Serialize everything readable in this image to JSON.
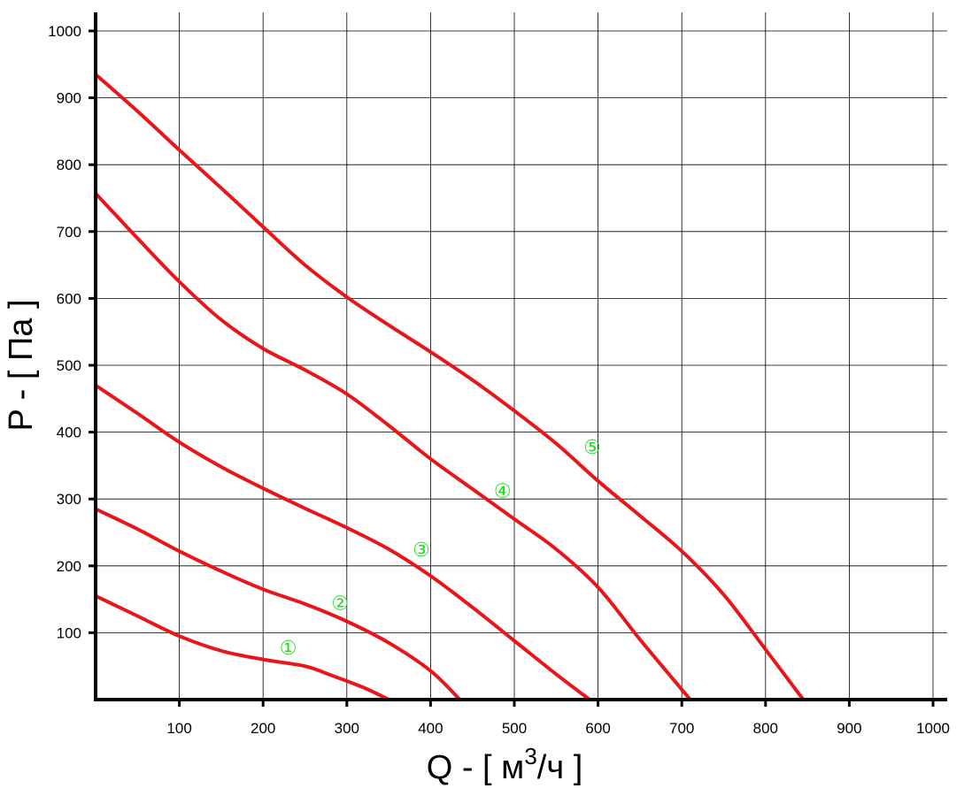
{
  "chart_data": {
    "type": "line",
    "xlabel": "Q - [ м³/ч ]",
    "xlabel_parts": {
      "prefix": "Q - [ м",
      "sup": "3",
      "suffix": "/ч ]"
    },
    "ylabel": "P - [ Па ]",
    "xlim": [
      0,
      1000
    ],
    "ylim": [
      0,
      1000
    ],
    "x_ticks": [
      100,
      200,
      300,
      400,
      500,
      600,
      700,
      800,
      900,
      1000
    ],
    "y_ticks": [
      100,
      200,
      300,
      400,
      500,
      600,
      700,
      800,
      900,
      1000
    ],
    "grid": true,
    "series_color": "#e8161b",
    "grid_color": "#000000",
    "label_color": "#22dd22",
    "series": [
      {
        "label": "①",
        "label_pos": [
          230,
          78
        ],
        "points": [
          [
            0,
            155
          ],
          [
            50,
            125
          ],
          [
            100,
            95
          ],
          [
            150,
            73
          ],
          [
            200,
            60
          ],
          [
            250,
            50
          ],
          [
            280,
            37
          ],
          [
            320,
            18
          ],
          [
            350,
            0
          ]
        ]
      },
      {
        "label": "②",
        "label_pos": [
          292,
          145
        ],
        "points": [
          [
            0,
            285
          ],
          [
            50,
            255
          ],
          [
            100,
            222
          ],
          [
            150,
            192
          ],
          [
            200,
            165
          ],
          [
            250,
            143
          ],
          [
            300,
            117
          ],
          [
            350,
            85
          ],
          [
            400,
            43
          ],
          [
            435,
            0
          ]
        ]
      },
      {
        "label": "③",
        "label_pos": [
          389,
          225
        ],
        "points": [
          [
            0,
            470
          ],
          [
            50,
            428
          ],
          [
            100,
            385
          ],
          [
            150,
            348
          ],
          [
            200,
            316
          ],
          [
            250,
            286
          ],
          [
            300,
            257
          ],
          [
            350,
            225
          ],
          [
            400,
            185
          ],
          [
            450,
            138
          ],
          [
            500,
            88
          ],
          [
            550,
            38
          ],
          [
            590,
            0
          ]
        ]
      },
      {
        "label": "④",
        "label_pos": [
          486,
          313
        ],
        "points": [
          [
            0,
            757
          ],
          [
            50,
            690
          ],
          [
            100,
            625
          ],
          [
            150,
            568
          ],
          [
            200,
            525
          ],
          [
            250,
            493
          ],
          [
            300,
            457
          ],
          [
            350,
            410
          ],
          [
            400,
            360
          ],
          [
            450,
            315
          ],
          [
            500,
            270
          ],
          [
            550,
            225
          ],
          [
            600,
            168
          ],
          [
            650,
            90
          ],
          [
            690,
            30
          ],
          [
            710,
            0
          ]
        ]
      },
      {
        "label": "⑤",
        "label_pos": [
          593,
          378
        ],
        "points": [
          [
            0,
            935
          ],
          [
            50,
            880
          ],
          [
            100,
            822
          ],
          [
            150,
            765
          ],
          [
            200,
            707
          ],
          [
            250,
            650
          ],
          [
            300,
            602
          ],
          [
            350,
            560
          ],
          [
            400,
            520
          ],
          [
            450,
            478
          ],
          [
            500,
            432
          ],
          [
            550,
            383
          ],
          [
            600,
            327
          ],
          [
            650,
            275
          ],
          [
            700,
            222
          ],
          [
            750,
            157
          ],
          [
            800,
            75
          ],
          [
            845,
            0
          ]
        ]
      }
    ]
  }
}
